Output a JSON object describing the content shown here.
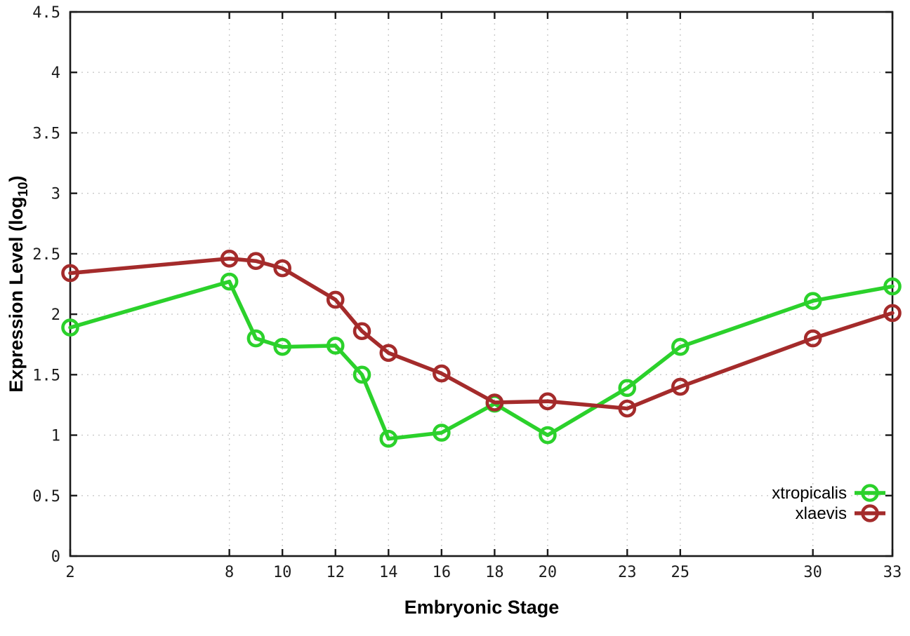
{
  "chart_data": {
    "type": "line",
    "title": "",
    "xlabel": "Embryonic Stage",
    "ylabel": "Expression Level (log10)",
    "ylabel_parts": {
      "main": "Expression Level (log",
      "sub": "10",
      "end": ")"
    },
    "x": [
      2,
      8,
      9,
      10,
      12,
      13,
      14,
      16,
      18,
      20,
      23,
      25,
      30,
      33
    ],
    "series": [
      {
        "name": "xtropicalis",
        "color": "#2bd12b",
        "marker": "open-circle",
        "values": [
          1.89,
          2.27,
          1.8,
          1.73,
          1.74,
          1.5,
          0.97,
          1.02,
          1.26,
          1.0,
          1.39,
          1.73,
          2.11,
          2.23
        ]
      },
      {
        "name": "xlaevis",
        "color": "#a42b2b",
        "marker": "open-circle",
        "values": [
          2.34,
          2.46,
          2.44,
          2.38,
          2.12,
          1.86,
          1.68,
          1.51,
          1.27,
          1.28,
          1.22,
          1.4,
          1.8,
          2.01
        ]
      }
    ],
    "xlim": [
      2,
      33
    ],
    "ylim": [
      0,
      4.5
    ],
    "xtick_values": [
      2,
      8,
      10,
      12,
      14,
      16,
      18,
      20,
      23,
      25,
      30,
      33
    ],
    "xtick_labels": [
      "2",
      "8",
      "10",
      "12",
      "14",
      "16",
      "18",
      "20",
      "23",
      "25",
      "30",
      "33"
    ],
    "ytick_values": [
      0,
      0.5,
      1,
      1.5,
      2,
      2.5,
      3,
      3.5,
      4,
      4.5
    ],
    "ytick_labels": [
      "0",
      "0.5",
      "1",
      "1.5",
      "2",
      "2.5",
      "3",
      "3.5",
      "4",
      "4.5"
    ],
    "grid": true,
    "grid_color": "#c9c9c9",
    "border_color": "#1a1a1a",
    "legend_position": "inside-bottom-right",
    "legend_entries": [
      "xtropicalis",
      "xlaevis"
    ]
  }
}
